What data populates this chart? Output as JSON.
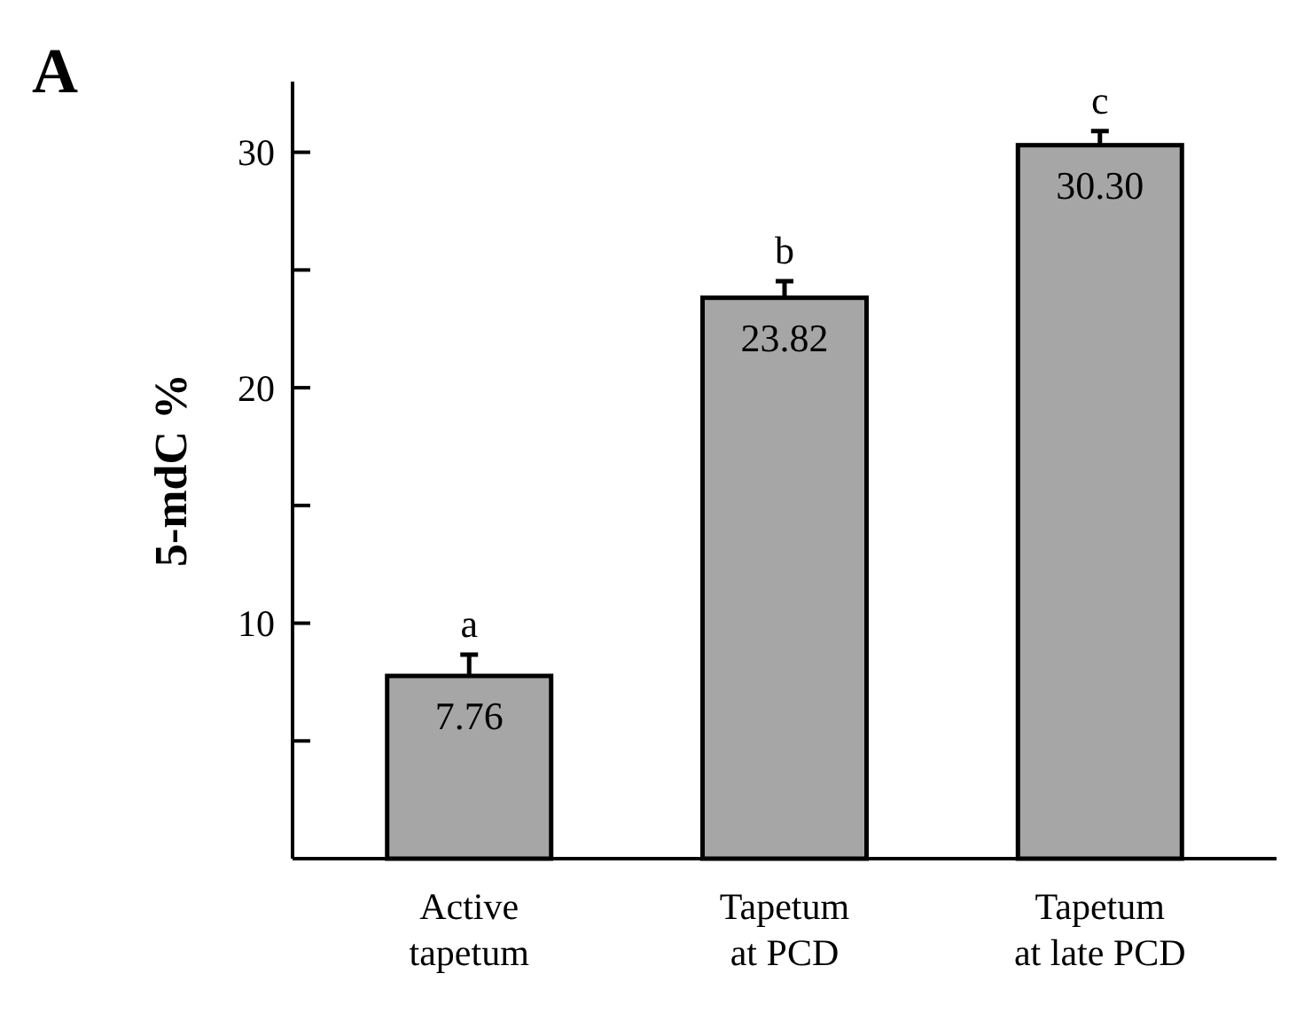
{
  "chart_data": {
    "type": "bar",
    "ylabel": "5-mdC %",
    "categories": [
      "Active\ntapetum",
      "Tapetum\nat PCD",
      "Tapetum\nat late PCD"
    ],
    "values": [
      7.76,
      23.82,
      30.3
    ],
    "value_labels": [
      "7.76",
      "23.82",
      "30.30"
    ],
    "errors": [
      [
        7.76,
        8.66
      ],
      [
        23.82,
        24.52
      ],
      [
        30.3,
        30.9
      ]
    ],
    "color": "#a6a6a6",
    "ylim": [
      0,
      33
    ],
    "yticks": [
      {
        "value": 5,
        "label": null
      },
      10,
      {
        "value": 15,
        "label": null
      },
      20,
      {
        "value": 25,
        "label": null
      },
      30
    ],
    "grid": false,
    "annotations": [
      "A",
      "a",
      "b",
      "c"
    ]
  }
}
